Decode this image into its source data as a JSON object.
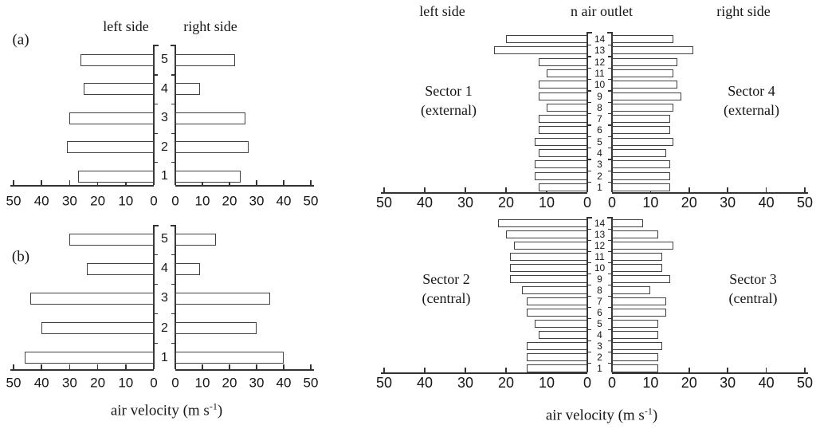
{
  "figure": {
    "left_chart": {
      "header_left": "left side",
      "header_right": "right side",
      "panel_a_label": "(a)",
      "panel_b_label": "(b)",
      "xlabel_pre": "air velocity (m s",
      "xlabel_sup": "-1",
      "xlabel_post": ")"
    },
    "right_chart": {
      "header_left": "left side",
      "header_center": "n air outlet",
      "header_right": "right side",
      "sector_labels": {
        "s1": [
          "Sector 1",
          "(external)"
        ],
        "s4": [
          "Sector 4",
          "(external)"
        ],
        "s2": [
          "Sector 2",
          "(central)"
        ],
        "s3": [
          "Sector 3",
          "(central)"
        ]
      },
      "xlabel_pre": "air velocity (m s",
      "xlabel_sup": "-1",
      "xlabel_post": ")"
    }
  },
  "chart_data": [
    {
      "id": "panel_a",
      "type": "bar",
      "orientation": "horizontal-diverging",
      "panel": "(a)",
      "xlabel": "air velocity (m s-1)",
      "categories": [
        5,
        4,
        3,
        2,
        1
      ],
      "series": [
        {
          "name": "left side",
          "values": [
            26,
            25,
            30,
            31,
            27
          ]
        },
        {
          "name": "right side",
          "values": [
            22,
            9,
            26,
            27,
            24
          ]
        }
      ],
      "xlim": [
        0,
        50
      ],
      "xticks": [
        0,
        10,
        20,
        30,
        40,
        50
      ],
      "grid": false,
      "bar_fill": "#ffffff",
      "bar_stroke": "#414141"
    },
    {
      "id": "panel_b",
      "type": "bar",
      "orientation": "horizontal-diverging",
      "panel": "(b)",
      "xlabel": "air velocity (m s-1)",
      "categories": [
        5,
        4,
        3,
        2,
        1
      ],
      "series": [
        {
          "name": "left side",
          "values": [
            30,
            24,
            44,
            40,
            46
          ]
        },
        {
          "name": "right side",
          "values": [
            15,
            9,
            35,
            30,
            40
          ]
        }
      ],
      "xlim": [
        0,
        50
      ],
      "xticks": [
        0,
        10,
        20,
        30,
        40,
        50
      ],
      "grid": false,
      "bar_fill": "#ffffff",
      "bar_stroke": "#414141"
    },
    {
      "id": "sector_external",
      "type": "bar",
      "orientation": "horizontal-diverging",
      "center_axis_label": "n air outlet",
      "left_annotation": "Sector 1 (external)",
      "right_annotation": "Sector 4 (external)",
      "xlabel": "air velocity (m s-1)",
      "categories": [
        14,
        13,
        12,
        11,
        10,
        9,
        8,
        7,
        6,
        5,
        4,
        3,
        2,
        1
      ],
      "series": [
        {
          "name": "left side (Sector 1)",
          "values": [
            20,
            23,
            12,
            10,
            12,
            12,
            10,
            12,
            12,
            13,
            12,
            13,
            13,
            12
          ]
        },
        {
          "name": "right side (Sector 4)",
          "values": [
            16,
            21,
            17,
            16,
            17,
            18,
            16,
            15,
            15,
            16,
            14,
            15,
            15,
            15
          ]
        }
      ],
      "xlim": [
        0,
        50
      ],
      "xticks": [
        0,
        10,
        20,
        30,
        40,
        50
      ],
      "grid": false,
      "bar_fill": "#ffffff",
      "bar_stroke": "#414141"
    },
    {
      "id": "sector_central",
      "type": "bar",
      "orientation": "horizontal-diverging",
      "center_axis_label": "n air outlet",
      "left_annotation": "Sector 2 (central)",
      "right_annotation": "Sector 3 (central)",
      "xlabel": "air velocity (m s-1)",
      "categories": [
        14,
        13,
        12,
        11,
        10,
        9,
        8,
        7,
        6,
        5,
        4,
        3,
        2,
        1
      ],
      "series": [
        {
          "name": "left side (Sector 2)",
          "values": [
            22,
            20,
            18,
            19,
            19,
            19,
            16,
            15,
            15,
            13,
            12,
            15,
            15,
            15
          ]
        },
        {
          "name": "right side (Sector 3)",
          "values": [
            8,
            12,
            16,
            13,
            13,
            15,
            10,
            14,
            14,
            12,
            12,
            13,
            12,
            12
          ]
        }
      ],
      "xlim": [
        0,
        50
      ],
      "xticks": [
        0,
        10,
        20,
        30,
        40,
        50
      ],
      "grid": false,
      "bar_fill": "#ffffff",
      "bar_stroke": "#414141"
    }
  ]
}
